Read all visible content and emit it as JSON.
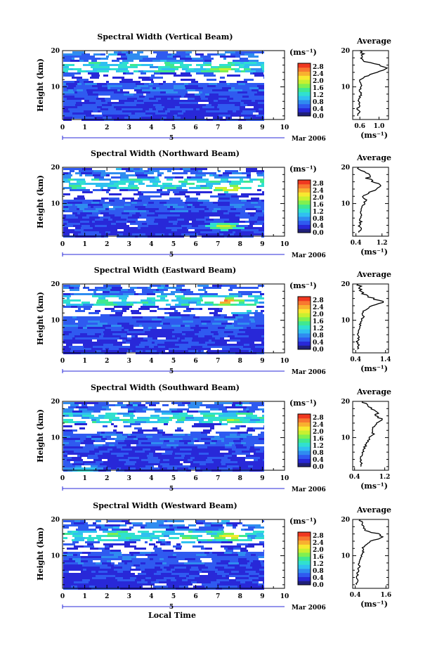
{
  "chart_data": {
    "type": "heatmap",
    "xlabel": "Local Time",
    "x_ticks": [
      "0",
      "1",
      "2",
      "3",
      "4",
      "5",
      "6",
      "7",
      "8",
      "9",
      "10"
    ],
    "xlim": [
      0,
      10
    ],
    "ylim": [
      1,
      20
    ],
    "date_label": "Mar 2006",
    "date_day": "5",
    "colorbar": {
      "unit": "(ms⁻¹)",
      "ticks": [
        "0.0",
        "0.4",
        "0.8",
        "1.2",
        "1.6",
        "2.0",
        "2.4",
        "2.8"
      ],
      "vmin": 0.0,
      "vmax": 3.0,
      "colors": [
        "#20207a",
        "#2828d8",
        "#2f5af0",
        "#2f8cf0",
        "#30c0f0",
        "#30e0d0",
        "#40e890",
        "#80f050",
        "#c8f030",
        "#f8e830",
        "#f8b030",
        "#f87830",
        "#f03820"
      ]
    },
    "panels": [
      {
        "title": "Spectral Width (Vertical Beam)",
        "ylabel": "Height (km)",
        "y_ticks": [
          "10",
          "20"
        ],
        "profile_title": "Average",
        "profile_unit": "(ms⁻¹)",
        "profile_ticks": [
          "0.6",
          "1.0"
        ],
        "profile_xlim": [
          0.45,
          1.2
        ],
        "profile": {
          "height": [
            2,
            3,
            4,
            5,
            6,
            7,
            8,
            9,
            10,
            11,
            12,
            13,
            14,
            15,
            16,
            17,
            18,
            19,
            20
          ],
          "value": [
            0.55,
            0.6,
            0.55,
            0.6,
            0.58,
            0.6,
            0.62,
            0.6,
            0.63,
            0.62,
            0.6,
            0.75,
            0.95,
            1.15,
            1.05,
            0.7,
            0.6,
            0.65,
            0.6
          ]
        },
        "hot_spots": [
          [
            7.2,
            15.0,
            2.2
          ],
          [
            4.5,
            17.0,
            1.2
          ]
        ]
      },
      {
        "title": "Spectral Width (Northward Beam)",
        "ylabel": "Height (km)",
        "y_ticks": [
          "10",
          "20"
        ],
        "profile_title": "Average",
        "profile_unit": "(ms⁻¹)",
        "profile_ticks": [
          "0.4",
          "1.2"
        ],
        "profile_xlim": [
          0.3,
          1.4
        ],
        "profile": {
          "height": [
            2,
            3,
            4,
            5,
            6,
            7,
            8,
            9,
            10,
            11,
            12,
            13,
            14,
            15,
            16,
            17,
            18,
            19,
            20
          ],
          "value": [
            0.5,
            0.55,
            0.5,
            0.55,
            0.52,
            0.55,
            0.58,
            0.6,
            0.65,
            0.7,
            0.62,
            0.8,
            1.05,
            1.2,
            0.95,
            0.75,
            0.9,
            0.55,
            0.5
          ]
        },
        "hot_spots": [
          [
            7.5,
            14.5,
            2.6
          ],
          [
            7.3,
            4.0,
            2.3
          ]
        ]
      },
      {
        "title": "Spectral Width (Eastward Beam)",
        "ylabel": "Height (km)",
        "y_ticks": [
          "10",
          "20"
        ],
        "profile_title": "Average",
        "profile_unit": "(ms⁻¹)",
        "profile_ticks": [
          "0.4",
          "1.4"
        ],
        "profile_xlim": [
          0.3,
          1.5
        ],
        "profile": {
          "height": [
            2,
            3,
            4,
            5,
            6,
            7,
            8,
            9,
            10,
            11,
            12,
            13,
            14,
            15,
            16,
            17,
            18,
            19,
            20
          ],
          "value": [
            0.45,
            0.5,
            0.45,
            0.5,
            0.48,
            0.5,
            0.52,
            0.55,
            0.6,
            0.65,
            0.6,
            0.75,
            0.95,
            1.35,
            1.0,
            0.7,
            0.6,
            0.55,
            0.5
          ]
        },
        "hot_spots": [
          [
            7.3,
            15.5,
            3.0
          ],
          [
            8.0,
            13.0,
            1.6
          ]
        ]
      },
      {
        "title": "Spectral Width (Southward Beam)",
        "ylabel": "Height (km)",
        "y_ticks": [
          "10",
          "20"
        ],
        "profile_title": "Average",
        "profile_unit": "(ms⁻¹)",
        "profile_ticks": [
          "0.4",
          "1.2"
        ],
        "profile_xlim": [
          0.35,
          1.3
        ],
        "profile": {
          "height": [
            2,
            3,
            4,
            5,
            6,
            7,
            8,
            9,
            10,
            11,
            12,
            13,
            14,
            15,
            16,
            17,
            18,
            19,
            20
          ],
          "value": [
            0.55,
            0.6,
            0.55,
            0.6,
            0.62,
            0.65,
            0.7,
            0.75,
            0.8,
            0.9,
            0.85,
            0.9,
            1.0,
            1.15,
            0.95,
            1.0,
            0.85,
            0.7,
            0.6
          ]
        },
        "hot_spots": [
          [
            7.6,
            15.0,
            2.0
          ],
          [
            1.0,
            1.5,
            1.4
          ]
        ]
      },
      {
        "title": "Spectral Width (Westward Beam)",
        "ylabel": "Height (km)",
        "y_ticks": [
          "10",
          "20"
        ],
        "profile_title": "Average",
        "profile_unit": "(ms⁻¹)",
        "profile_ticks": [
          "0.4",
          "1.6"
        ],
        "profile_xlim": [
          0.3,
          1.7
        ],
        "profile": {
          "height": [
            2,
            3,
            4,
            5,
            6,
            7,
            8,
            9,
            10,
            11,
            12,
            13,
            14,
            15,
            16,
            17,
            18,
            19,
            20
          ],
          "value": [
            0.45,
            0.5,
            0.48,
            0.5,
            0.52,
            0.55,
            0.55,
            0.6,
            0.65,
            0.7,
            0.68,
            0.8,
            1.0,
            1.45,
            1.3,
            0.8,
            0.7,
            0.65,
            0.55
          ]
        },
        "hot_spots": [
          [
            7.5,
            15.5,
            2.6
          ],
          [
            2.2,
            16.0,
            1.9
          ],
          [
            5.5,
            15.0,
            1.8
          ]
        ]
      }
    ]
  }
}
